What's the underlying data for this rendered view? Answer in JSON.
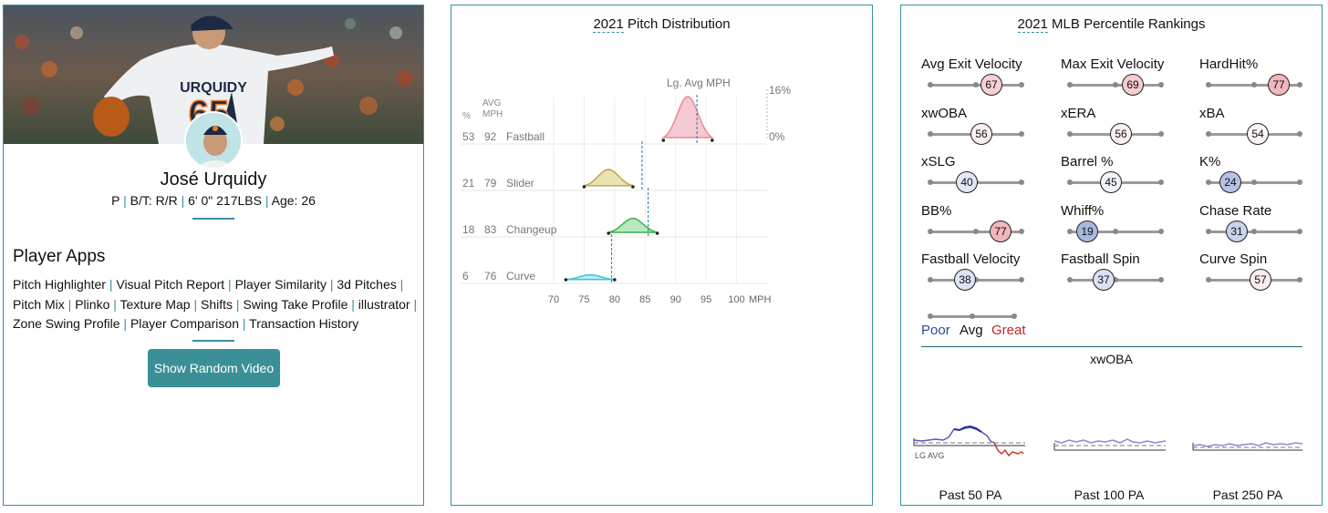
{
  "player": {
    "name": "José Urquidy",
    "position": "P",
    "bats_throws": "B/T: R/R",
    "size": "6' 0\" 217LBS",
    "age": "Age: 26",
    "jersey_name": "URQUIDY",
    "jersey_number": "65"
  },
  "apps": {
    "heading": "Player Apps",
    "items": [
      "Pitch Highlighter",
      "Visual Pitch Report",
      "Player Similarity",
      "3d Pitches",
      "Pitch Mix",
      "Plinko",
      "Texture Map",
      "Shifts",
      "Swing Take Profile",
      "illustrator",
      "Zone Swing Profile",
      "Player Comparison",
      "Transaction History"
    ],
    "button": "Show Random Video"
  },
  "pitch_dist": {
    "title_year": "2021",
    "title_rest": " Pitch Distribution",
    "col_pct": "%",
    "col_avg": "AVG",
    "col_mph": "MPH",
    "lg_avg_label": "Lg. Avg MPH",
    "max_pct_label": "16%",
    "zero_label": "0%",
    "x_ticks": [
      "70",
      "75",
      "80",
      "85",
      "90",
      "95",
      "100"
    ],
    "x_unit": "MPH",
    "pitches": [
      {
        "name": "Fastball",
        "pct": "53",
        "mph": "92",
        "color": "#e8899a",
        "fill": "#f4c9d1",
        "lg_avg": 93.5
      },
      {
        "name": "Slider",
        "pct": "21",
        "mph": "79",
        "color": "#b9a94d",
        "fill": "#e9e2b3",
        "lg_avg": 84.5
      },
      {
        "name": "Changeup",
        "pct": "18",
        "mph": "83",
        "color": "#33b34a",
        "fill": "#b9e8be",
        "lg_avg": 85.5
      },
      {
        "name": "Curve",
        "pct": "6",
        "mph": "76",
        "color": "#3cc6d6",
        "fill": "#b7eef4",
        "lg_avg": 79.5
      }
    ]
  },
  "percentiles": {
    "title_year": "2021",
    "title_rest": " MLB Percentile Rankings",
    "stats": [
      {
        "label": "Avg Exit Velocity",
        "value": "67"
      },
      {
        "label": "Max Exit Velocity",
        "value": "69"
      },
      {
        "label": "HardHit%",
        "value": "77"
      },
      {
        "label": "xwOBA",
        "value": "56"
      },
      {
        "label": "xERA",
        "value": "56"
      },
      {
        "label": "xBA",
        "value": "54"
      },
      {
        "label": "xSLG",
        "value": "40"
      },
      {
        "label": "Barrel %",
        "value": "45"
      },
      {
        "label": "K%",
        "value": "24"
      },
      {
        "label": "BB%",
        "value": "77"
      },
      {
        "label": "Whiff%",
        "value": "19"
      },
      {
        "label": "Chase Rate",
        "value": "31"
      },
      {
        "label": "Fastball Velocity",
        "value": "38"
      },
      {
        "label": "Fastball Spin",
        "value": "37"
      },
      {
        "label": "Curve Spin",
        "value": "57"
      }
    ],
    "legend": {
      "poor": "Poor",
      "avg": "Avg",
      "great": "Great"
    },
    "colors": {
      "poor": "#2a4a9a",
      "great": "#c0282d"
    }
  },
  "xwoba": {
    "title": "xwOBA",
    "lg_avg_label": "LG AVG",
    "windows": [
      "Past 50 PA",
      "Past 100 PA",
      "Past 250 PA"
    ]
  }
}
